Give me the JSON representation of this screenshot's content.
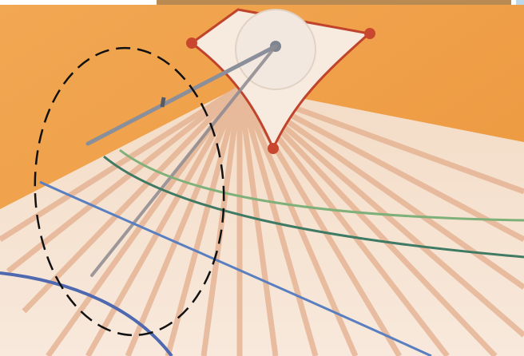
{
  "image": {
    "subject": "painted-wall-sundial-closeup",
    "colors": {
      "wall": "#f0a14a",
      "wall_shadow": "#e08a35",
      "dial_face": "#f6e3d0",
      "ray_shade": "#e9b898",
      "mount_plate": "#f7eadf",
      "mount_outline": "#c0432b",
      "disc": "#f3e8df",
      "gnomon": "#8a8f99",
      "green_line": "#7fb07a",
      "dark_green_line": "#3f7a64",
      "blue_line": "#5a7fc0",
      "annotation": "#111111"
    }
  }
}
